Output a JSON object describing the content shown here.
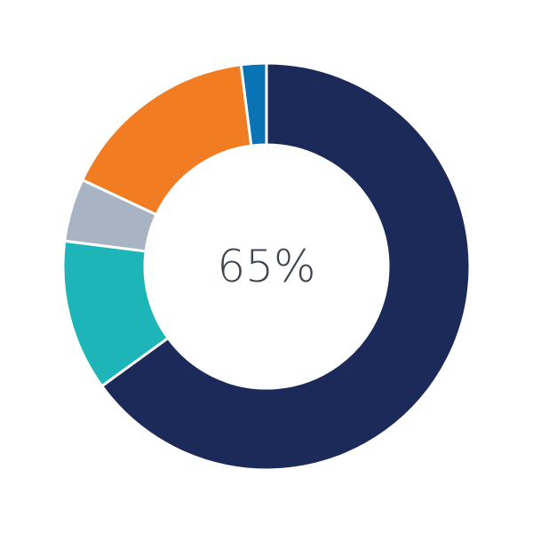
{
  "chart_data": {
    "type": "pie",
    "variant": "donut",
    "center_label": "65%",
    "start": "top",
    "direction": "clockwise",
    "legend": "none",
    "values": [
      65,
      12,
      5,
      16,
      2
    ],
    "colors": [
      "#1c2a5a",
      "#1db5b8",
      "#a8b3c3",
      "#f27c21",
      "#0a73b6"
    ]
  }
}
